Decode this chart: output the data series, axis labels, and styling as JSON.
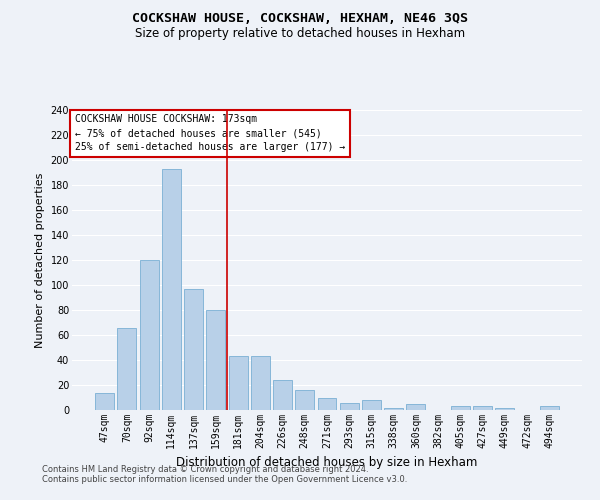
{
  "title": "COCKSHAW HOUSE, COCKSHAW, HEXHAM, NE46 3QS",
  "subtitle": "Size of property relative to detached houses in Hexham",
  "xlabel": "Distribution of detached houses by size in Hexham",
  "ylabel": "Number of detached properties",
  "categories": [
    "47sqm",
    "70sqm",
    "92sqm",
    "114sqm",
    "137sqm",
    "159sqm",
    "181sqm",
    "204sqm",
    "226sqm",
    "248sqm",
    "271sqm",
    "293sqm",
    "315sqm",
    "338sqm",
    "360sqm",
    "382sqm",
    "405sqm",
    "427sqm",
    "449sqm",
    "472sqm",
    "494sqm"
  ],
  "values": [
    14,
    66,
    120,
    193,
    97,
    80,
    43,
    43,
    24,
    16,
    10,
    6,
    8,
    2,
    5,
    0,
    3,
    3,
    2,
    0,
    3
  ],
  "bar_color": "#b8d0e8",
  "bar_edge_color": "#7aafd4",
  "vline_x": 6.0,
  "vline_color": "#cc0000",
  "annotation_title": "COCKSHAW HOUSE COCKSHAW: 173sqm",
  "annotation_line1": "← 75% of detached houses are smaller (545)",
  "annotation_line2": "25% of semi-detached houses are larger (177) →",
  "annotation_box_color": "#ffffff",
  "annotation_box_edge": "#cc0000",
  "ylim": [
    0,
    240
  ],
  "yticks": [
    0,
    20,
    40,
    60,
    80,
    100,
    120,
    140,
    160,
    180,
    200,
    220,
    240
  ],
  "footer1": "Contains HM Land Registry data © Crown copyright and database right 2024.",
  "footer2": "Contains public sector information licensed under the Open Government Licence v3.0.",
  "bg_color": "#eef2f8",
  "grid_color": "#ffffff",
  "title_fontsize": 9.5,
  "subtitle_fontsize": 8.5,
  "tick_fontsize": 7,
  "ylabel_fontsize": 8,
  "xlabel_fontsize": 8.5,
  "ann_fontsize": 7,
  "footer_fontsize": 6
}
